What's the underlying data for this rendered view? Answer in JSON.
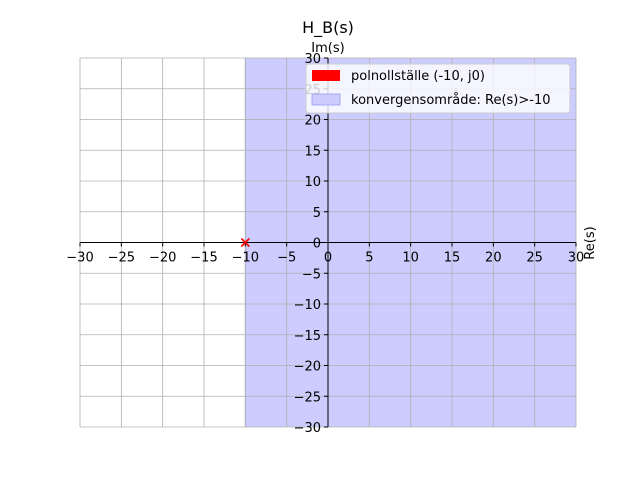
{
  "chart_data": {
    "type": "scatter",
    "title": "H_B(s)",
    "xlabel": "Re(s)",
    "ylabel": "Im(s)",
    "xlim": [
      -30,
      30
    ],
    "ylim": [
      -30,
      30
    ],
    "xticks": [
      -30,
      -25,
      -20,
      -15,
      -10,
      -5,
      0,
      5,
      10,
      15,
      20,
      25,
      30
    ],
    "yticks": [
      -30,
      -25,
      -20,
      -15,
      -10,
      -5,
      0,
      5,
      10,
      15,
      20,
      25,
      30
    ],
    "x_tick_labels": [
      "−30",
      "−25",
      "−20",
      "−15",
      "−10",
      "−5",
      "0",
      "5",
      "10",
      "15",
      "20",
      "25",
      "30"
    ],
    "y_tick_labels": [
      "−30",
      "−25",
      "−20",
      "−15",
      "−10",
      "−5",
      "0",
      "5",
      "10",
      "15",
      "20",
      "25",
      "30"
    ],
    "grid": true,
    "spines": "centered-at-origin",
    "region": {
      "label": "konvergensområde: Re(s)>-10",
      "re_min": -10,
      "re_max": 30,
      "color": "#ccccff"
    },
    "poles": {
      "label": "polnollställe (-10, j0)",
      "marker": "x",
      "color": "#ff0000",
      "points": [
        {
          "re": -10,
          "im": 0
        }
      ]
    },
    "legend": {
      "placement": "upper-right",
      "entries": [
        "polnollställe (-10, j0)",
        "konvergensområde: Re(s)>-10"
      ]
    }
  }
}
